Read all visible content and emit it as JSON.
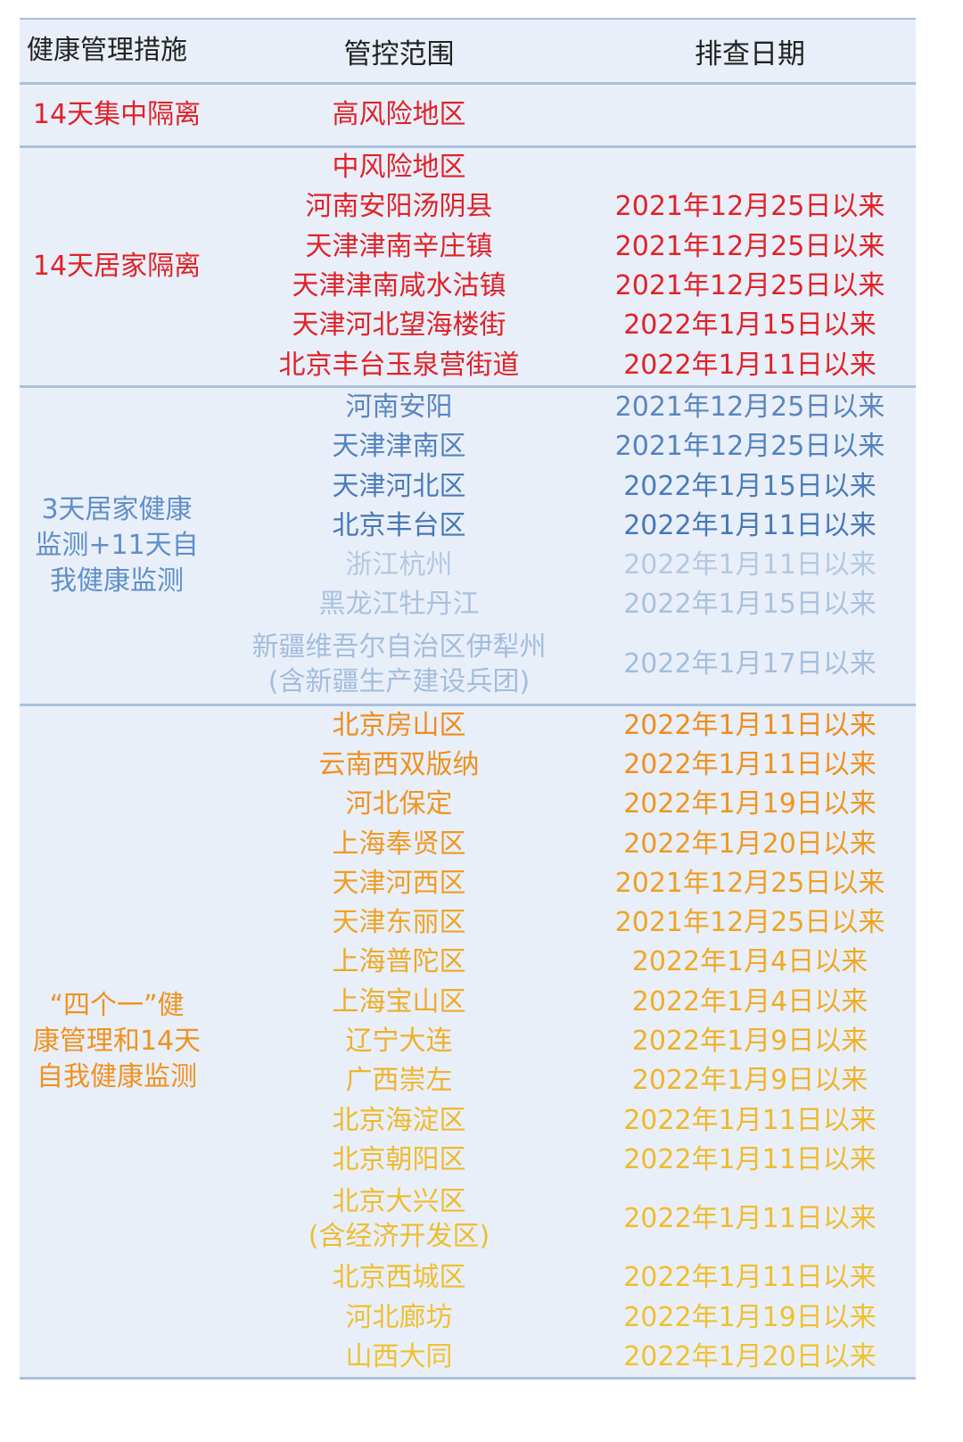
{
  "header": {
    "measure": "健康管理措施",
    "scope": "管控范围",
    "date": "排查日期"
  },
  "groups": [
    {
      "measure": "14天集中隔离",
      "color": "#e02228",
      "rows": [
        {
          "scope": [
            "高风险地区"
          ],
          "date": "",
          "color": "#e02228"
        }
      ]
    },
    {
      "measure": "14天居家隔离",
      "color": "#e02228",
      "rows": [
        {
          "scope": [
            "中风险地区"
          ],
          "date": "",
          "color": "#e02228"
        },
        {
          "scope": [
            "河南安阳汤阴县"
          ],
          "date": "2021年12月25日以来",
          "color": "#e02228"
        },
        {
          "scope": [
            "天津津南辛庄镇"
          ],
          "date": "2021年12月25日以来",
          "color": "#e02228"
        },
        {
          "scope": [
            "天津津南咸水沽镇"
          ],
          "date": "2021年12月25日以来",
          "color": "#e02228"
        },
        {
          "scope": [
            "天津河北望海楼街"
          ],
          "date": "2022年1月15日以来",
          "color": "#e02228"
        },
        {
          "scope": [
            "北京丰台玉泉营街道"
          ],
          "date": "2022年1月11日以来",
          "color": "#e02228"
        }
      ]
    },
    {
      "measure": "3天居家健康监测+11天自我健康监测",
      "measure_lines": [
        "3天居家健康",
        "监测+11天自",
        "我健康监测"
      ],
      "color": "#5e8fc9",
      "rows": [
        {
          "scope": [
            "河南安阳"
          ],
          "date": "2021年12月25日以来",
          "color": "#5b86bf"
        },
        {
          "scope": [
            "天津津南区"
          ],
          "date": "2021年12月25日以来",
          "color": "#5283c0"
        },
        {
          "scope": [
            "天津河北区"
          ],
          "date": "2022年1月15日以来",
          "color": "#4a7cbb"
        },
        {
          "scope": [
            "北京丰台区"
          ],
          "date": "2022年1月11日以来",
          "color": "#4678b8"
        },
        {
          "scope": [
            "浙江杭州"
          ],
          "date": "2022年1月11日以来",
          "color": "#b3c8e2"
        },
        {
          "scope": [
            "黑龙江牡丹江"
          ],
          "date": "2022年1月15日以来",
          "color": "#a9c1df"
        },
        {
          "scope": [
            "新疆维吾尔自治区伊犁州",
            "(含新疆生产建设兵团)"
          ],
          "date": "2022年1月17日以来",
          "color": "#a3bddd"
        }
      ]
    },
    {
      "measure": "“四个一”健康管理和14天自我健康监测",
      "measure_lines": [
        "“四个一”健",
        "康管理和14天",
        "自我健康监测"
      ],
      "color": "#f0921e",
      "rows": [
        {
          "scope": [
            "北京房山区"
          ],
          "date": "2022年1月11日以来",
          "color": "#f08c1c"
        },
        {
          "scope": [
            "云南西双版纳"
          ],
          "date": "2022年1月11日以来",
          "color": "#f0901e"
        },
        {
          "scope": [
            "河北保定"
          ],
          "date": "2022年1月19日以来",
          "color": "#f09420"
        },
        {
          "scope": [
            "上海奉贤区"
          ],
          "date": "2022年1月20日以来",
          "color": "#f09822"
        },
        {
          "scope": [
            "天津河西区"
          ],
          "date": "2021年12月25日以来",
          "color": "#f09e22"
        },
        {
          "scope": [
            "天津东丽区"
          ],
          "date": "2021年12月25日以来",
          "color": "#f0a424"
        },
        {
          "scope": [
            "上海普陀区"
          ],
          "date": "2022年1月4日以来",
          "color": "#f0a826"
        },
        {
          "scope": [
            "上海宝山区"
          ],
          "date": "2022年1月4日以来",
          "color": "#f0ac26"
        },
        {
          "scope": [
            "辽宁大连"
          ],
          "date": "2022年1月9日以来",
          "color": "#f0b028"
        },
        {
          "scope": [
            "广西崇左"
          ],
          "date": "2022年1月9日以来",
          "color": "#f0b42a"
        },
        {
          "scope": [
            "北京海淀区"
          ],
          "date": "2022年1月11日以来",
          "color": "#f0b82a"
        },
        {
          "scope": [
            "北京朝阳区"
          ],
          "date": "2022年1月11日以来",
          "color": "#f0ba2c"
        },
        {
          "scope": [
            "北京大兴区",
            "(含经济开发区)"
          ],
          "date": "2022年1月11日以来",
          "color": "#f0bc2e"
        },
        {
          "scope": [
            "北京西城区"
          ],
          "date": "2022年1月11日以来",
          "color": "#f0be2e"
        },
        {
          "scope": [
            "河北廊坊"
          ],
          "date": "2022年1月19日以来",
          "color": "#f0c030"
        },
        {
          "scope": [
            "山西大同"
          ],
          "date": "2022年1月20日以来",
          "color": "#f0c230"
        }
      ]
    }
  ]
}
